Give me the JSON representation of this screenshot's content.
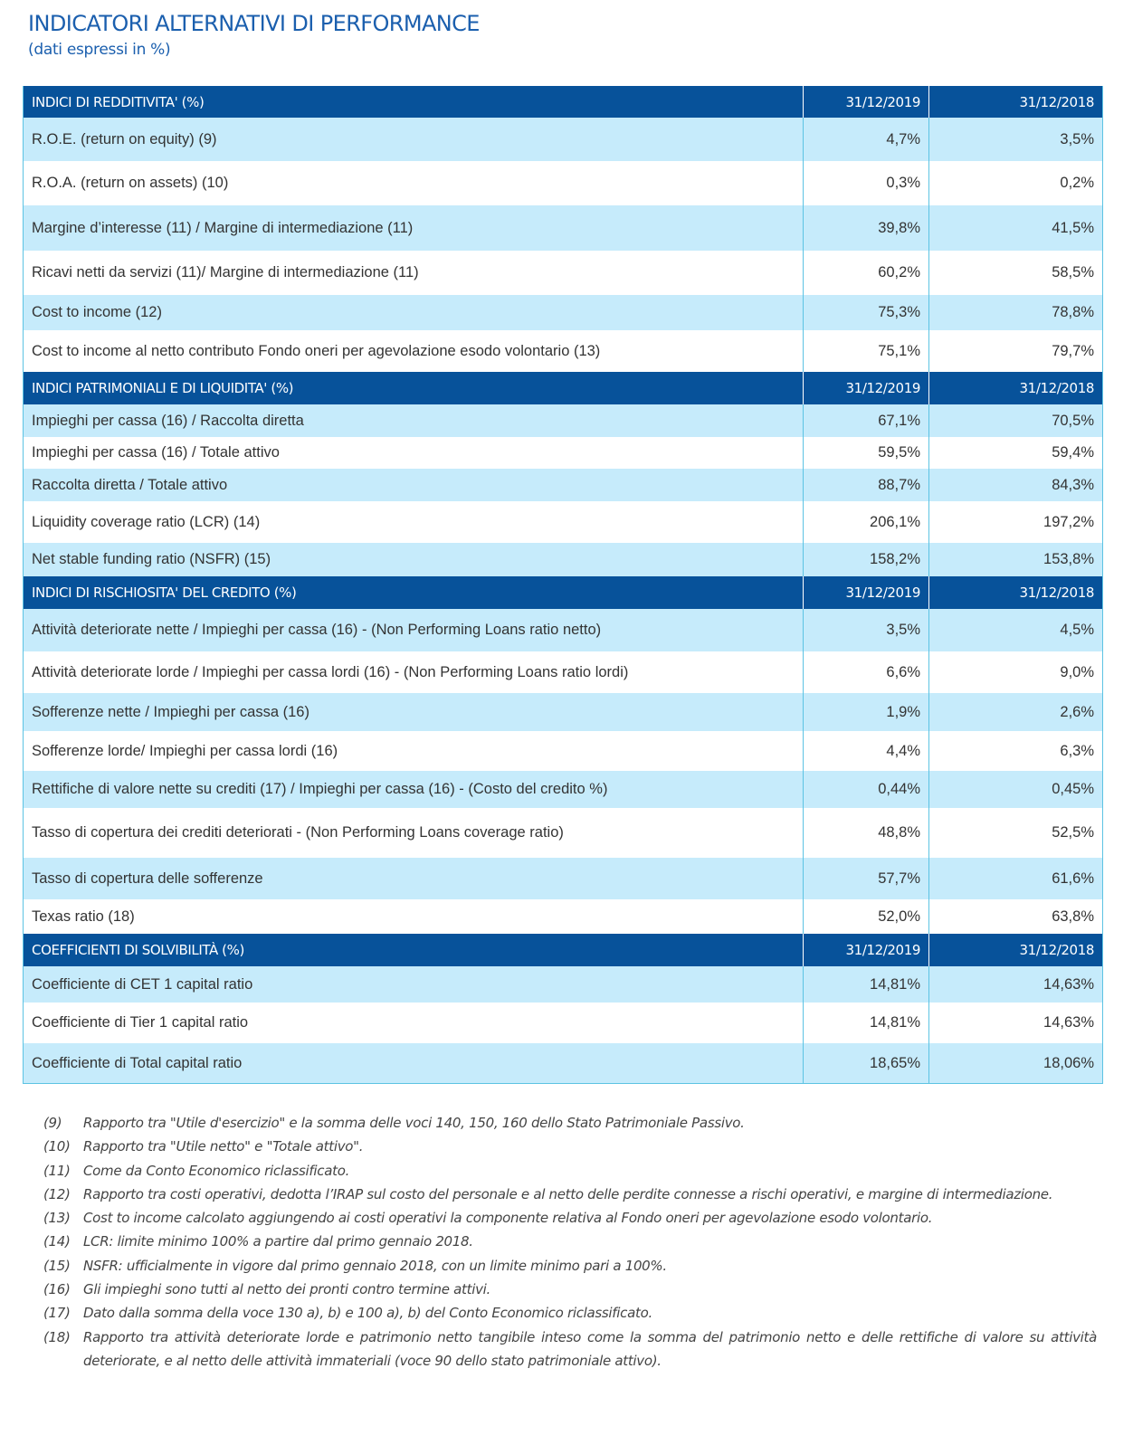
{
  "title": "INDICATORI ALTERNATIVI DI PERFORMANCE",
  "subtitle": "(dati espressi in %)",
  "sections": [
    {
      "header": "INDICI DI REDDITIVITA' (%)",
      "col1": "31/12/2019",
      "col2": "31/12/2018",
      "rows": [
        {
          "label": "R.O.E. (return on equity) (9)",
          "v2019": "4,7%",
          "v2018": "3,5%"
        },
        {
          "label": "R.O.A. (return on assets) (10)",
          "v2019": "0,3%",
          "v2018": "0,2%"
        },
        {
          "label": "Margine d’interesse (11) / Margine di intermediazione (11)",
          "v2019": "39,8%",
          "v2018": "41,5%"
        },
        {
          "label": "Ricavi netti da servizi (11)/ Margine di intermediazione (11)",
          "v2019": "60,2%",
          "v2018": "58,5%"
        },
        {
          "label": "Cost to income (12)",
          "v2019": "75,3%",
          "v2018": "78,8%"
        },
        {
          "label": "Cost to income al netto contributo Fondo oneri per agevolazione esodo volontario (13)",
          "v2019": "75,1%",
          "v2018": "79,7%"
        }
      ]
    },
    {
      "header": "INDICI PATRIMONIALI E DI LIQUIDITA' (%)",
      "col1": "31/12/2019",
      "col2": "31/12/2018",
      "rows": [
        {
          "label": "Impieghi per cassa (16) / Raccolta diretta",
          "v2019": "67,1%",
          "v2018": "70,5%"
        },
        {
          "label": "Impieghi per cassa (16)  / Totale attivo",
          "v2019": "59,5%",
          "v2018": "59,4%"
        },
        {
          "label": "Raccolta diretta  / Totale attivo",
          "v2019": "88,7%",
          "v2018": "84,3%"
        },
        {
          "label": "Liquidity coverage ratio (LCR) (14)",
          "v2019": "206,1%",
          "v2018": "197,2%"
        },
        {
          "label": "Net stable funding ratio (NSFR) (15)",
          "v2019": "158,2%",
          "v2018": "153,8%"
        }
      ]
    },
    {
      "header": "INDICI DI RISCHIOSITA' DEL CREDITO (%)",
      "col1": "31/12/2019",
      "col2": "31/12/2018",
      "rows": [
        {
          "label": "Attività deteriorate nette / Impieghi per cassa (16) - (Non Performing Loans ratio netto)",
          "v2019": "3,5%",
          "v2018": "4,5%"
        },
        {
          "label": "Attività deteriorate lorde / Impieghi per cassa lordi (16) - (Non Performing Loans ratio lordi)",
          "v2019": "6,6%",
          "v2018": "9,0%"
        },
        {
          "label": "Sofferenze nette / Impieghi per cassa (16)",
          "v2019": "1,9%",
          "v2018": "2,6%"
        },
        {
          "label": "Sofferenze lorde/ Impieghi per cassa lordi (16)",
          "v2019": "4,4%",
          "v2018": "6,3%"
        },
        {
          "label": "Rettifiche di valore nette su crediti (17) / Impieghi per cassa (16) - (Costo del credito %)",
          "v2019": "0,44%",
          "v2018": "0,45%"
        },
        {
          "label": "Tasso di copertura dei crediti deteriorati - (Non Performing Loans coverage ratio)",
          "v2019": "48,8%",
          "v2018": "52,5%"
        },
        {
          "label": "Tasso di copertura delle sofferenze",
          "v2019": "57,7%",
          "v2018": "61,6%"
        },
        {
          "label": "Texas ratio (18)",
          "v2019": "52,0%",
          "v2018": "63,8%"
        }
      ]
    },
    {
      "header": "COEFFICIENTI DI SOLVIBILITÀ (%)",
      "col1": "31/12/2019",
      "col2": "31/12/2018",
      "rows": [
        {
          "label": "Coefficiente di CET 1 capital ratio",
          "v2019": "14,81%",
          "v2018": "14,63%"
        },
        {
          "label": "Coefficiente di Tier 1 capital ratio",
          "v2019": "14,81%",
          "v2018": "14,63%"
        },
        {
          "label": "Coefficiente di Total capital ratio",
          "v2019": "18,65%",
          "v2018": "18,06%"
        }
      ]
    }
  ],
  "notes": [
    {
      "num": "(9)",
      "text": "Rapporto tra \"Utile d'esercizio\" e la somma delle voci 140, 150, 160 dello Stato Patrimoniale Passivo."
    },
    {
      "num": "(10)",
      "text": "Rapporto tra \"Utile netto\" e \"Totale attivo\"."
    },
    {
      "num": "(11)",
      "text": "Come da Conto Economico riclassificato."
    },
    {
      "num": "(12)",
      "text": "Rapporto tra costi operativi, dedotta l’IRAP sul costo del personale e al netto delle perdite connesse a rischi operativi, e margine di intermediazione."
    },
    {
      "num": "(13)",
      "text": "Cost to income calcolato aggiungendo ai costi operativi la componente relativa al Fondo oneri per agevolazione esodo volontario."
    },
    {
      "num": "(14)",
      "text": "LCR: limite minimo 100% a partire dal primo gennaio 2018."
    },
    {
      "num": "(15)",
      "text": "NSFR: ufficialmente in vigore dal primo gennaio 2018, con un limite minimo pari a 100%."
    },
    {
      "num": "(16)",
      "text": "Gli impieghi sono tutti al netto dei pronti contro termine attivi."
    },
    {
      "num": "(17)",
      "text": "Dato dalla somma della voce 130 a), b) e 100 a), b) del Conto Economico riclassificato."
    },
    {
      "num": "(18)",
      "text": "Rapporto tra attività deteriorate lorde e patrimonio netto tangibile inteso come la somma del patrimonio netto e delle rettifiche di valore su attività deteriorate, e al netto delle attività immateriali (voce 90 dello stato patrimoniale attivo)."
    }
  ]
}
